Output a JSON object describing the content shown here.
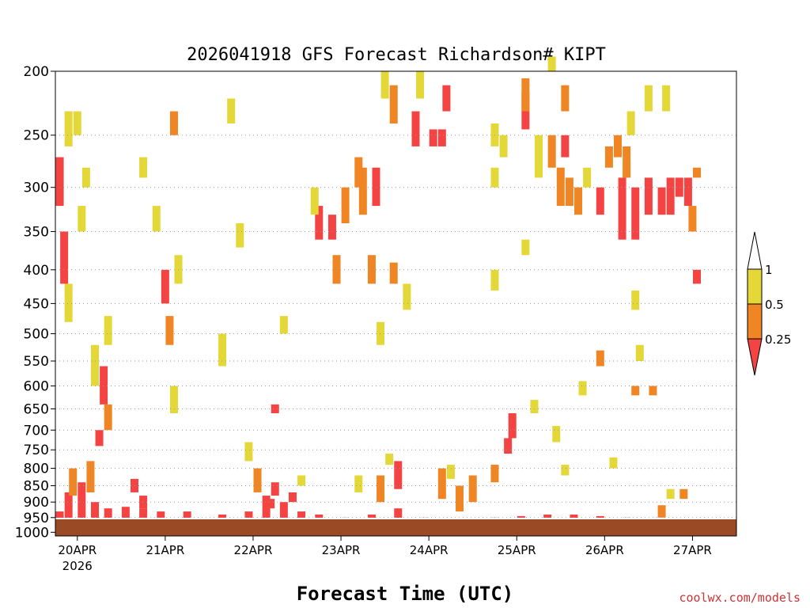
{
  "chart_data": {
    "type": "heatmap",
    "title": "2026041918 GFS Forecast Richardson# KIPT",
    "xlabel": "Forecast Time (UTC)",
    "credit": "coolwx.com/models",
    "x_ticks": [
      "20APR",
      "21APR",
      "22APR",
      "23APR",
      "24APR",
      "25APR",
      "26APR",
      "27APR"
    ],
    "x_tick_year": "2026",
    "y_ticks": [
      "200",
      "250",
      "300",
      "350",
      "400",
      "450",
      "500",
      "550",
      "600",
      "650",
      "700",
      "750",
      "800",
      "850",
      "900",
      "950",
      "1000"
    ],
    "y_scale": "log",
    "yrange": [
      1013,
      200
    ],
    "xrange_days": [
      0,
      7.75
    ],
    "colorbar": {
      "levels": [
        "1",
        "0.5",
        "0.25"
      ],
      "colors": {
        "gt1": "#ffffff",
        "lt1": "#e3d838",
        "lt05": "#ef8523",
        "lt025": "#f44343"
      }
    },
    "surface_color": "#9a4a24",
    "grid": "dotted horizontal at y ticks",
    "cells": [
      {
        "d": 0.05,
        "p0": 1000,
        "p1": 930,
        "c": 3
      },
      {
        "d": 0.15,
        "p0": 1000,
        "p1": 870,
        "c": 3
      },
      {
        "d": 0.3,
        "p0": 990,
        "p1": 840,
        "c": 3
      },
      {
        "d": 0.45,
        "p0": 960,
        "p1": 900,
        "c": 3
      },
      {
        "d": 0.6,
        "p0": 990,
        "p1": 920,
        "c": 3
      },
      {
        "d": 0.8,
        "p0": 990,
        "p1": 915,
        "c": 3
      },
      {
        "d": 1.0,
        "p0": 990,
        "p1": 920,
        "c": 3
      },
      {
        "d": 1.2,
        "p0": 990,
        "p1": 930,
        "c": 3
      },
      {
        "d": 1.5,
        "p0": 990,
        "p1": 930,
        "c": 3
      },
      {
        "d": 1.9,
        "p0": 990,
        "p1": 940,
        "c": 3
      },
      {
        "d": 2.2,
        "p0": 990,
        "p1": 930,
        "c": 3
      },
      {
        "d": 2.4,
        "p0": 970,
        "p1": 880,
        "c": 3
      },
      {
        "d": 2.6,
        "p0": 960,
        "p1": 900,
        "c": 3
      },
      {
        "d": 2.8,
        "p0": 980,
        "p1": 930,
        "c": 3
      },
      {
        "d": 3.0,
        "p0": 980,
        "p1": 940,
        "c": 3
      },
      {
        "d": 3.3,
        "p0": 985,
        "p1": 950,
        "c": 3
      },
      {
        "d": 3.6,
        "p0": 990,
        "p1": 940,
        "c": 3
      },
      {
        "d": 3.9,
        "p0": 990,
        "p1": 920,
        "c": 3
      },
      {
        "d": 4.2,
        "p0": 995,
        "p1": 950,
        "c": 3
      },
      {
        "d": 4.6,
        "p0": 995,
        "p1": 960,
        "c": 3
      },
      {
        "d": 5.0,
        "p0": 990,
        "p1": 950,
        "c": 3
      },
      {
        "d": 5.3,
        "p0": 985,
        "p1": 945,
        "c": 3
      },
      {
        "d": 5.6,
        "p0": 985,
        "p1": 940,
        "c": 3
      },
      {
        "d": 5.9,
        "p0": 985,
        "p1": 940,
        "c": 3
      },
      {
        "d": 6.2,
        "p0": 985,
        "p1": 945,
        "c": 3
      },
      {
        "d": 6.5,
        "p0": 990,
        "p1": 950,
        "c": 3
      },
      {
        "d": 6.9,
        "p0": 995,
        "p1": 960,
        "c": 3
      },
      {
        "d": 7.3,
        "p0": 990,
        "p1": 955,
        "c": 3
      },
      {
        "d": 7.6,
        "p0": 990,
        "p1": 955,
        "c": 3
      },
      {
        "d": 0.2,
        "p0": 880,
        "p1": 800,
        "c": 2
      },
      {
        "d": 0.4,
        "p0": 870,
        "p1": 780,
        "c": 2
      },
      {
        "d": 0.5,
        "p0": 740,
        "p1": 700,
        "c": 3
      },
      {
        "d": 0.55,
        "p0": 640,
        "p1": 560,
        "c": 3
      },
      {
        "d": 0.45,
        "p0": 600,
        "p1": 520,
        "c": 1
      },
      {
        "d": 0.6,
        "p0": 700,
        "p1": 640,
        "c": 2
      },
      {
        "d": 0.1,
        "p0": 420,
        "p1": 350,
        "c": 3
      },
      {
        "d": 0.05,
        "p0": 320,
        "p1": 270,
        "c": 3
      },
      {
        "d": 0.15,
        "p0": 480,
        "p1": 420,
        "c": 1
      },
      {
        "d": 0.25,
        "p0": 250,
        "p1": 230,
        "c": 1
      },
      {
        "d": 0.3,
        "p0": 350,
        "p1": 320,
        "c": 1
      },
      {
        "d": 0.6,
        "p0": 520,
        "p1": 470,
        "c": 1
      },
      {
        "d": 1.25,
        "p0": 450,
        "p1": 400,
        "c": 3
      },
      {
        "d": 1.3,
        "p0": 520,
        "p1": 470,
        "c": 2
      },
      {
        "d": 1.35,
        "p0": 660,
        "p1": 600,
        "c": 1
      },
      {
        "d": 1.4,
        "p0": 420,
        "p1": 380,
        "c": 1
      },
      {
        "d": 1.9,
        "p0": 560,
        "p1": 500,
        "c": 1
      },
      {
        "d": 1.15,
        "p0": 350,
        "p1": 320,
        "c": 1
      },
      {
        "d": 2.3,
        "p0": 870,
        "p1": 800,
        "c": 2
      },
      {
        "d": 2.5,
        "p0": 880,
        "p1": 840,
        "c": 3
      },
      {
        "d": 2.7,
        "p0": 900,
        "p1": 870,
        "c": 3
      },
      {
        "d": 2.2,
        "p0": 780,
        "p1": 730,
        "c": 1
      },
      {
        "d": 2.5,
        "p0": 660,
        "p1": 640,
        "c": 3
      },
      {
        "d": 2.8,
        "p0": 850,
        "p1": 820,
        "c": 1
      },
      {
        "d": 3.0,
        "p0": 360,
        "p1": 320,
        "c": 3
      },
      {
        "d": 3.15,
        "p0": 360,
        "p1": 330,
        "c": 3
      },
      {
        "d": 3.3,
        "p0": 340,
        "p1": 300,
        "c": 2
      },
      {
        "d": 2.95,
        "p0": 330,
        "p1": 300,
        "c": 1
      },
      {
        "d": 3.5,
        "p0": 330,
        "p1": 280,
        "c": 2
      },
      {
        "d": 3.45,
        "p0": 300,
        "p1": 270,
        "c": 2
      },
      {
        "d": 3.65,
        "p0": 320,
        "p1": 280,
        "c": 3
      },
      {
        "d": 3.75,
        "p0": 220,
        "p1": 200,
        "c": 1
      },
      {
        "d": 3.85,
        "p0": 240,
        "p1": 210,
        "c": 2
      },
      {
        "d": 3.7,
        "p0": 900,
        "p1": 820,
        "c": 2
      },
      {
        "d": 3.8,
        "p0": 790,
        "p1": 760,
        "c": 1
      },
      {
        "d": 3.9,
        "p0": 860,
        "p1": 780,
        "c": 3
      },
      {
        "d": 4.1,
        "p0": 260,
        "p1": 230,
        "c": 3
      },
      {
        "d": 4.15,
        "p0": 220,
        "p1": 200,
        "c": 1
      },
      {
        "d": 4.3,
        "p0": 260,
        "p1": 245,
        "c": 3
      },
      {
        "d": 4.4,
        "p0": 260,
        "p1": 245,
        "c": 3
      },
      {
        "d": 4.45,
        "p0": 230,
        "p1": 210,
        "c": 3
      },
      {
        "d": 4.6,
        "p0": 930,
        "p1": 850,
        "c": 2
      },
      {
        "d": 4.4,
        "p0": 890,
        "p1": 800,
        "c": 2
      },
      {
        "d": 4.5,
        "p0": 830,
        "p1": 790,
        "c": 1
      },
      {
        "d": 4.75,
        "p0": 900,
        "p1": 820,
        "c": 2
      },
      {
        "d": 5.0,
        "p0": 840,
        "p1": 790,
        "c": 2
      },
      {
        "d": 5.0,
        "p0": 260,
        "p1": 240,
        "c": 1
      },
      {
        "d": 5.1,
        "p0": 270,
        "p1": 250,
        "c": 1
      },
      {
        "d": 5.2,
        "p0": 720,
        "p1": 660,
        "c": 3
      },
      {
        "d": 5.35,
        "p0": 245,
        "p1": 215,
        "c": 3
      },
      {
        "d": 5.35,
        "p0": 230,
        "p1": 205,
        "c": 2
      },
      {
        "d": 5.15,
        "p0": 760,
        "p1": 720,
        "c": 3
      },
      {
        "d": 5.5,
        "p0": 290,
        "p1": 250,
        "c": 1
      },
      {
        "d": 5.65,
        "p0": 280,
        "p1": 250,
        "c": 2
      },
      {
        "d": 5.75,
        "p0": 320,
        "p1": 280,
        "c": 2
      },
      {
        "d": 5.85,
        "p0": 320,
        "p1": 290,
        "c": 2
      },
      {
        "d": 5.8,
        "p0": 270,
        "p1": 250,
        "c": 3
      },
      {
        "d": 5.95,
        "p0": 330,
        "p1": 300,
        "c": 2
      },
      {
        "d": 5.35,
        "p0": 380,
        "p1": 360,
        "c": 1
      },
      {
        "d": 5.45,
        "p0": 660,
        "p1": 630,
        "c": 1
      },
      {
        "d": 6.05,
        "p0": 300,
        "p1": 280,
        "c": 1
      },
      {
        "d": 6.2,
        "p0": 330,
        "p1": 300,
        "c": 3
      },
      {
        "d": 6.3,
        "p0": 280,
        "p1": 260,
        "c": 2
      },
      {
        "d": 6.45,
        "p0": 360,
        "p1": 290,
        "c": 3
      },
      {
        "d": 6.6,
        "p0": 360,
        "p1": 300,
        "c": 3
      },
      {
        "d": 6.75,
        "p0": 330,
        "p1": 290,
        "c": 3
      },
      {
        "d": 6.9,
        "p0": 330,
        "p1": 300,
        "c": 3
      },
      {
        "d": 7.0,
        "p0": 330,
        "p1": 290,
        "c": 3
      },
      {
        "d": 7.1,
        "p0": 310,
        "p1": 290,
        "c": 3
      },
      {
        "d": 7.2,
        "p0": 320,
        "p1": 290,
        "c": 3
      },
      {
        "d": 7.25,
        "p0": 350,
        "p1": 320,
        "c": 2
      },
      {
        "d": 7.3,
        "p0": 290,
        "p1": 280,
        "c": 2
      },
      {
        "d": 6.5,
        "p0": 290,
        "p1": 260,
        "c": 2
      },
      {
        "d": 6.4,
        "p0": 270,
        "p1": 250,
        "c": 2
      },
      {
        "d": 6.75,
        "p0": 230,
        "p1": 210,
        "c": 1
      },
      {
        "d": 6.8,
        "p0": 620,
        "p1": 600,
        "c": 2
      },
      {
        "d": 6.6,
        "p0": 620,
        "p1": 600,
        "c": 2
      },
      {
        "d": 7.3,
        "p0": 420,
        "p1": 400,
        "c": 3
      },
      {
        "d": 6.2,
        "p0": 560,
        "p1": 530,
        "c": 2
      },
      {
        "d": 6.35,
        "p0": 800,
        "p1": 770,
        "c": 1
      },
      {
        "d": 7.15,
        "p0": 890,
        "p1": 860,
        "c": 2
      },
      {
        "d": 7.0,
        "p0": 890,
        "p1": 860,
        "c": 1
      },
      {
        "d": 6.9,
        "p0": 950,
        "p1": 910,
        "c": 2
      },
      {
        "d": 5.8,
        "p0": 230,
        "p1": 210,
        "c": 2
      },
      {
        "d": 5.65,
        "p0": 200,
        "p1": 190,
        "c": 1
      },
      {
        "d": 6.55,
        "p0": 250,
        "p1": 230,
        "c": 1
      },
      {
        "d": 5.0,
        "p0": 430,
        "p1": 400,
        "c": 1
      },
      {
        "d": 6.95,
        "p0": 230,
        "p1": 210,
        "c": 1
      },
      {
        "d": 2.6,
        "p0": 500,
        "p1": 470,
        "c": 1
      },
      {
        "d": 2.1,
        "p0": 370,
        "p1": 340,
        "c": 1
      },
      {
        "d": 2.0,
        "p0": 240,
        "p1": 220,
        "c": 1
      },
      {
        "d": 3.2,
        "p0": 420,
        "p1": 380,
        "c": 2
      },
      {
        "d": 3.6,
        "p0": 420,
        "p1": 380,
        "c": 2
      },
      {
        "d": 3.85,
        "p0": 420,
        "p1": 390,
        "c": 2
      },
      {
        "d": 4.0,
        "p0": 460,
        "p1": 420,
        "c": 1
      },
      {
        "d": 3.7,
        "p0": 520,
        "p1": 480,
        "c": 1
      },
      {
        "d": 6.6,
        "p0": 460,
        "p1": 430,
        "c": 1
      },
      {
        "d": 6.65,
        "p0": 550,
        "p1": 520,
        "c": 1
      },
      {
        "d": 6.0,
        "p0": 620,
        "p1": 590,
        "c": 1
      },
      {
        "d": 5.7,
        "p0": 730,
        "p1": 690,
        "c": 1
      },
      {
        "d": 5.8,
        "p0": 820,
        "p1": 790,
        "c": 1
      },
      {
        "d": 5.0,
        "p0": 300,
        "p1": 280,
        "c": 1
      },
      {
        "d": 1.0,
        "p0": 290,
        "p1": 270,
        "c": 1
      },
      {
        "d": 0.15,
        "p0": 260,
        "p1": 230,
        "c": 1
      },
      {
        "d": 1.35,
        "p0": 250,
        "p1": 230,
        "c": 2
      },
      {
        "d": 0.9,
        "p0": 870,
        "p1": 830,
        "c": 3
      },
      {
        "d": 1.0,
        "p0": 920,
        "p1": 880,
        "c": 3
      },
      {
        "d": 2.45,
        "p0": 920,
        "p1": 890,
        "c": 3
      },
      {
        "d": 3.45,
        "p0": 870,
        "p1": 820,
        "c": 1
      },
      {
        "d": 0.35,
        "p0": 300,
        "p1": 280,
        "c": 1
      }
    ]
  }
}
